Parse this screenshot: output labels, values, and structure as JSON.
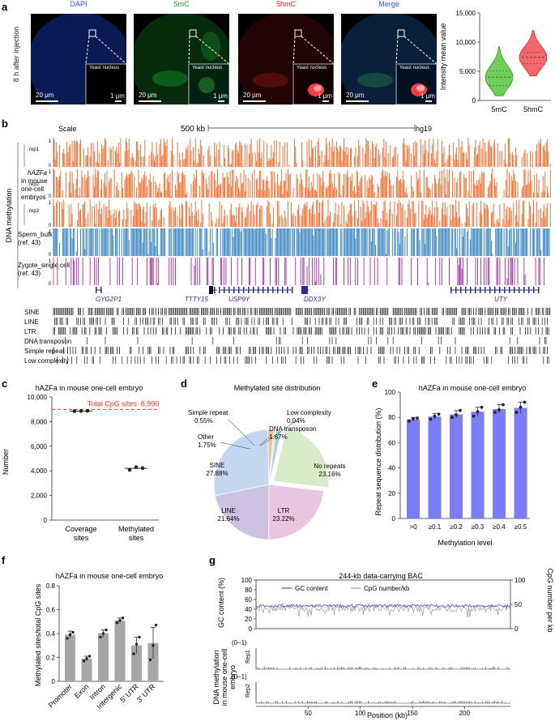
{
  "panel_labels": {
    "a": "a",
    "b": "b",
    "c": "c",
    "d": "d",
    "e": "e",
    "f": "f",
    "g": "g"
  },
  "panel_a": {
    "row_label": "8 h after injection",
    "images": [
      {
        "title": "DAPI",
        "color": "#3a4cff",
        "scale_big": "20 μm",
        "scale_small": "1 μm",
        "inset_label": "Yeast nucleus"
      },
      {
        "title": "5mC",
        "color": "#1f9e2e",
        "scale_big": "20 μm",
        "scale_small": "1 μm",
        "inset_label": "Yeast nucleus"
      },
      {
        "title": "5hmC",
        "color": "#e01f1f",
        "scale_big": "20 μm",
        "scale_small": "1 μm",
        "inset_label": "Yeast nucleus"
      },
      {
        "title": "Merge",
        "color": "#3a4cff",
        "scale_big": "20 μm",
        "scale_small": "1 μm",
        "inset_label": "Yeast nucleus"
      }
    ],
    "violin": {
      "ylabel": "Intensity mean value",
      "yticks": [
        "0",
        "5,000",
        "10,000",
        "15,000"
      ],
      "categories": [
        "5mC",
        "5hmC"
      ],
      "colors": [
        "#6ecf5b",
        "#f5676a"
      ]
    }
  },
  "panel_b": {
    "scale_label": "Scale",
    "scale_value": "500 kb",
    "genome": "hg19",
    "side_label": "DNA methylation",
    "group_label": [
      "hAZFa",
      "in mouse",
      "one-cell",
      "embryos"
    ],
    "tracks": [
      "rep1",
      "rep2",
      "rep3"
    ],
    "sperm_label": [
      "Sperm_bulk",
      "(ref. 43)"
    ],
    "zygote_label": [
      "Zygote_single cell",
      "(ref. 43)"
    ],
    "axis_top": "1",
    "axis_bottom": "0",
    "genes": [
      "GYG2P1",
      "TTTY15",
      "USP9Y",
      "DDX3Y",
      "UTY"
    ],
    "repeats": [
      "SINE",
      "LINE",
      "LTR",
      "DNA transposon",
      "Simple repeat",
      "Low complexity"
    ],
    "colors": {
      "rep": "#f26522",
      "sperm": "#2b7fc0",
      "zygote": "#a12ca8",
      "gene": "#2c2c8c"
    }
  },
  "panel_c": {
    "title": "hAZFa in mouse one-cell embryo",
    "ylabel": "Number",
    "total_label": "Total CpG sites: 8,990"
  },
  "panel_d": {
    "title": "Methylated site distribution",
    "labels": {
      "sine": [
        "SINE",
        "27.88%"
      ],
      "line": [
        "LINE",
        "21.64%"
      ],
      "ltr": [
        "LTR",
        "23.22%"
      ],
      "norep": [
        "No repeats",
        "23.16%"
      ],
      "simple": [
        "Simple repeat",
        "0.55%"
      ],
      "other": [
        "Other",
        "1.75%"
      ],
      "low": [
        "Low complexity",
        "0.04%"
      ],
      "dna": [
        "DNA transposon",
        "1.67%"
      ]
    }
  },
  "panel_e": {
    "title": "hAZFa in mouse one-cell embryo"
  },
  "panel_f": {
    "title": "hAZFa in mouse one-cell embryo"
  },
  "panel_g": {
    "title": "244-kb data-carrying BAC",
    "legend": [
      "GC content",
      "CpG number/kb"
    ],
    "ylabel_left": "GC content (%)",
    "ylabel_right": "CpG number per kb",
    "ylabel_lower": [
      "DNA methylation",
      "in mouse one-cell",
      "embryo"
    ],
    "range_label": "(0–1)",
    "reps": [
      "Rep1",
      "Rep2"
    ],
    "yticks": [
      "0",
      "20",
      "40",
      "60",
      "80",
      "100"
    ],
    "yticks_right": [
      "0",
      "50",
      "100"
    ]
  },
  "chart_data": [
    {
      "id": "a-violin",
      "type": "violin",
      "title": "",
      "categories": [
        "5mC",
        "5hmC"
      ],
      "median": [
        4000,
        7400
      ],
      "q1": [
        2600,
        6300
      ],
      "q3": [
        5100,
        8300
      ],
      "min": [
        800,
        4200
      ],
      "max": [
        9200,
        12000
      ],
      "ylabel": "Intensity mean value",
      "ylim": [
        0,
        15000
      ]
    },
    {
      "id": "c",
      "type": "scatter",
      "title": "hAZFa in mouse one-cell embryo",
      "categories": [
        "Coverage sites",
        "Methylated sites"
      ],
      "points": [
        [
          8850,
          8860,
          8870
        ],
        [
          4080,
          4300,
          4220
        ]
      ],
      "means": [
        8860,
        4200
      ],
      "reference_line": 8990,
      "ylabel": "Number",
      "yticks": [
        0,
        2000,
        4000,
        6000,
        8000,
        10000
      ],
      "ylim": [
        0,
        10000
      ]
    },
    {
      "id": "d",
      "type": "pie",
      "title": "Methylated site distribution",
      "categories": [
        "No repeats",
        "LTR",
        "LINE",
        "SINE",
        "Other",
        "Simple repeat",
        "Low complexity",
        "DNA transposon"
      ],
      "values": [
        23.16,
        23.22,
        21.64,
        27.88,
        1.75,
        0.55,
        0.04,
        1.67
      ],
      "colors": [
        "#d7ebc8",
        "#e9c7e0",
        "#cdc1e2",
        "#c4d7ee",
        "#e8c5a0",
        "#f1e27a",
        "#6f7db8",
        "#9ad3ea"
      ]
    },
    {
      "id": "e",
      "type": "bar",
      "title": "hAZFa in mouse one-cell embryo",
      "categories": [
        ">0",
        "≥0.1",
        "≥0.2",
        "≥0.3",
        "≥0.4",
        "≥0.5"
      ],
      "values": [
        78.5,
        80.7,
        82.4,
        84.5,
        86.6,
        87.5
      ],
      "errors": [
        1.5,
        2.5,
        3.0,
        3.5,
        3.5,
        4.5
      ],
      "points": [
        [
          77,
          79,
          79.5
        ],
        [
          78.5,
          81,
          82.5
        ],
        [
          80,
          82,
          85.5
        ],
        [
          81,
          84.5,
          88
        ],
        [
          84,
          86,
          90
        ],
        [
          84,
          88,
          92
        ]
      ],
      "xlabel": "Methylation level",
      "ylabel": "Repeat sequence distribution (%)",
      "yticks": [
        0,
        20,
        40,
        60,
        80,
        100
      ],
      "ylim": [
        0,
        100
      ],
      "color": "#7b7cf7"
    },
    {
      "id": "f",
      "type": "bar",
      "title": "hAZFa in mouse one-cell embryo",
      "categories": [
        "Promoter",
        "Exon",
        "Intron",
        "Intergenic",
        "5′ UTR",
        "3′ UTR"
      ],
      "values": [
        0.39,
        0.19,
        0.4,
        0.51,
        0.3,
        0.32
      ],
      "errors": [
        0.03,
        0.02,
        0.03,
        0.02,
        0.07,
        0.13
      ],
      "points": [
        [
          0.36,
          0.39,
          0.41
        ],
        [
          0.17,
          0.19,
          0.21
        ],
        [
          0.37,
          0.4,
          0.43
        ],
        [
          0.49,
          0.51,
          0.53
        ],
        [
          0.23,
          0.31,
          0.37
        ],
        [
          0.18,
          0.3,
          0.47
        ]
      ],
      "ylabel": "Methylated sites/total CpG sites",
      "yticks": [
        0,
        0.2,
        0.4,
        0.6,
        0.8
      ],
      "ylim": [
        0,
        0.8
      ],
      "color": "#a6a6a6"
    },
    {
      "id": "g",
      "type": "line",
      "title": "244-kb data-carrying BAC",
      "series": [
        {
          "name": "GC content",
          "mean": 47
        },
        {
          "name": "CpG number/kb",
          "mean": 42
        }
      ],
      "xlabel": "Position (kb)",
      "xticks": [
        50,
        100,
        150,
        200
      ],
      "xlim": [
        0,
        244
      ],
      "ylim": [
        0,
        100
      ],
      "ylabel": "GC content (%)"
    }
  ]
}
